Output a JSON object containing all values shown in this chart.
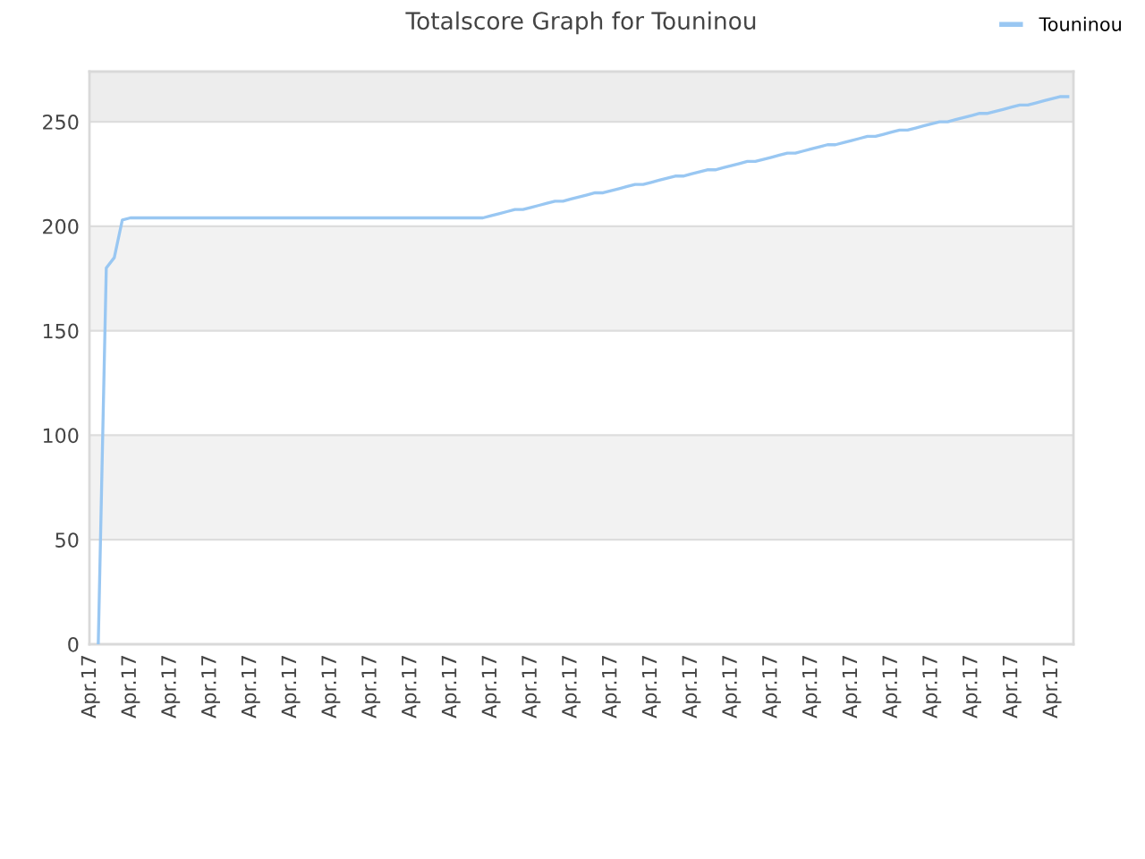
{
  "chart_data": {
    "type": "line",
    "title": "Totalscore Graph for Touninou",
    "categories": [
      "Apr.17",
      null,
      null,
      null,
      null,
      "Apr.17",
      null,
      null,
      null,
      null,
      "Apr.17",
      null,
      null,
      null,
      null,
      "Apr.17",
      null,
      null,
      null,
      null,
      "Apr.17",
      null,
      null,
      null,
      null,
      "Apr.17",
      null,
      null,
      null,
      null,
      "Apr.17",
      null,
      null,
      null,
      null,
      "Apr.17",
      null,
      null,
      null,
      null,
      "Apr.17",
      null,
      null,
      null,
      null,
      "Apr.17",
      null,
      null,
      null,
      null,
      "Apr.17",
      null,
      null,
      null,
      null,
      "Apr.17",
      null,
      null,
      null,
      null,
      "Apr.17",
      null,
      null,
      null,
      null,
      "Apr.17",
      null,
      null,
      null,
      null,
      "Apr.17",
      null,
      null,
      null,
      null,
      "Apr.17",
      null,
      null,
      null,
      null,
      "Apr.17",
      null,
      null,
      null,
      null,
      "Apr.17",
      null,
      null,
      null,
      null,
      "Apr.17",
      null,
      null,
      null,
      null,
      "Apr.17",
      null,
      null,
      null,
      null,
      "Apr.17",
      null,
      null,
      null,
      null,
      "Apr.17",
      null,
      null,
      null,
      null,
      "Apr.17",
      null,
      null,
      null,
      null,
      "Apr.17",
      null,
      null,
      null,
      null,
      "Apr.17",
      null,
      null
    ],
    "series": [
      {
        "name": "Touninou",
        "color": "#99c7f2",
        "values": [
          null,
          0,
          180,
          185,
          203,
          204,
          204,
          204,
          204,
          204,
          204,
          204,
          204,
          204,
          204,
          204,
          204,
          204,
          204,
          204,
          204,
          204,
          204,
          204,
          204,
          204,
          204,
          204,
          204,
          204,
          204,
          204,
          204,
          204,
          204,
          204,
          204,
          204,
          204,
          204,
          204,
          204,
          204,
          204,
          204,
          204,
          204,
          204,
          204,
          204,
          205,
          206,
          207,
          208,
          208,
          209,
          210,
          211,
          212,
          212,
          213,
          214,
          215,
          216,
          216,
          217,
          218,
          219,
          220,
          220,
          221,
          222,
          223,
          224,
          224,
          225,
          226,
          227,
          227,
          228,
          229,
          230,
          231,
          231,
          232,
          233,
          234,
          235,
          235,
          236,
          237,
          238,
          239,
          239,
          240,
          241,
          242,
          243,
          243,
          244,
          245,
          246,
          246,
          247,
          248,
          249,
          250,
          250,
          251,
          252,
          253,
          254,
          254,
          255,
          256,
          257,
          258,
          258,
          259,
          260,
          261,
          262,
          262
        ]
      }
    ],
    "ylim": [
      0,
      274
    ],
    "yticks": [
      0,
      50,
      100,
      150,
      200,
      250
    ],
    "bands": [
      {
        "axis": "y",
        "from": 50,
        "to": 100,
        "color": "#f2f2f2"
      },
      {
        "axis": "y",
        "from": 150,
        "to": 200,
        "color": "#f2f2f2"
      },
      {
        "axis": "y",
        "from": 250,
        "to": 274,
        "color": "#ededed"
      }
    ],
    "grid": "y",
    "legend": "top right",
    "marker": "none",
    "line_style": "solid"
  }
}
